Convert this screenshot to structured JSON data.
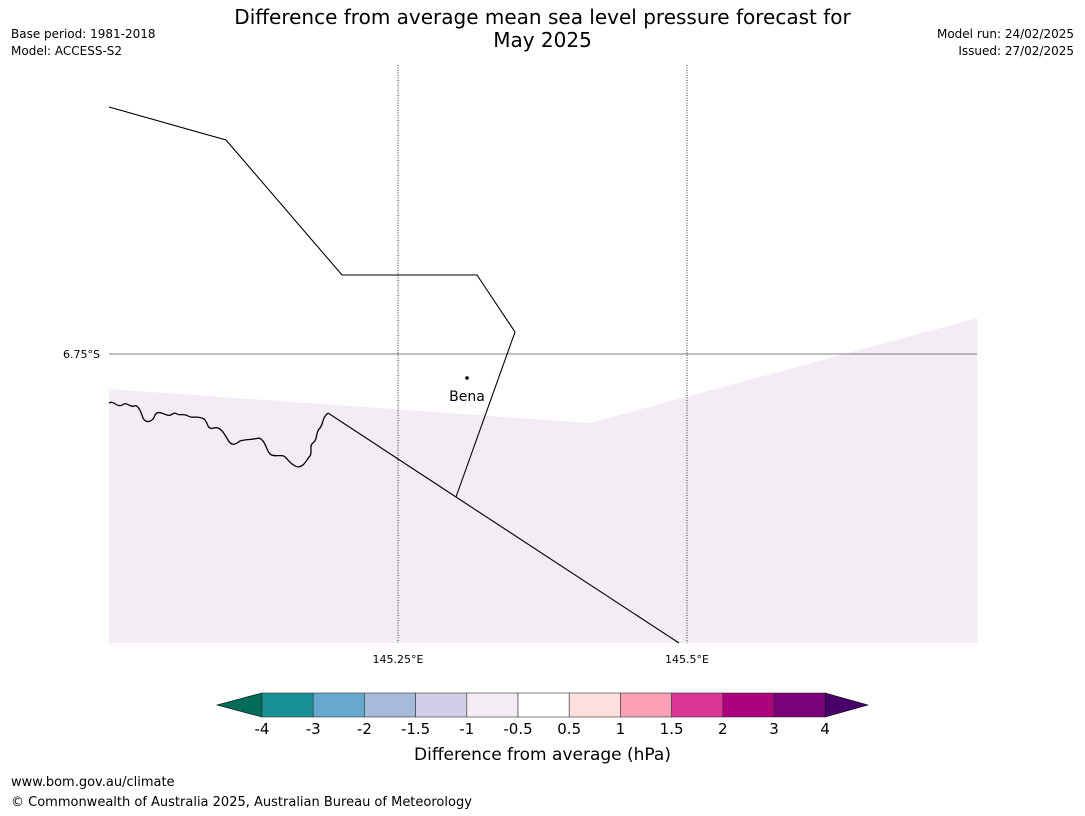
{
  "header": {
    "title_line1": "Difference from average mean sea level pressure forecast for",
    "title_line2": "May 2025",
    "base_period": "Base period: 1981-2018",
    "model": "Model: ACCESS-S2",
    "model_run": "Model run: 24/02/2025",
    "issued": "Issued: 27/02/2025"
  },
  "map": {
    "place_label": "Bena",
    "lat_labels": [
      "6.75°S"
    ],
    "lon_labels": [
      "145.25°E",
      "145.5°E"
    ],
    "shading_class": "-1 to -0.5",
    "shading_color": "#f3ecf5"
  },
  "colorbar": {
    "label": "Difference from average (hPa)",
    "ticks": [
      "-4",
      "-3",
      "-2",
      "-1.5",
      "-1",
      "-0.5",
      "0.5",
      "1",
      "1.5",
      "2",
      "3",
      "4"
    ],
    "colors": [
      "#1a8f94",
      "#67a8cf",
      "#a6bbdb",
      "#d0cee6",
      "#f3ecf5",
      "#ffffff",
      "#fde0dd",
      "#fa9fb5",
      "#dd3497",
      "#ae017e",
      "#7a0177"
    ],
    "low_extend_color": "#016c59",
    "high_extend_color": "#49006a"
  },
  "footer": {
    "url": "www.bom.gov.au/climate",
    "copyright": "© Commonwealth of Australia 2025, Australian Bureau of Meteorology"
  }
}
